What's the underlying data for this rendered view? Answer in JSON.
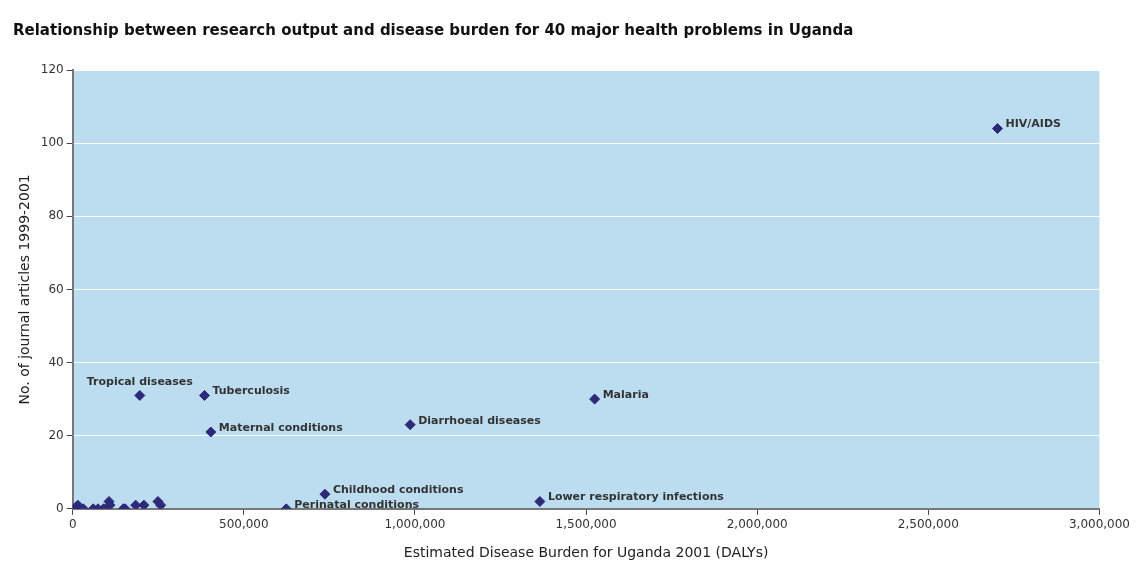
{
  "chart_data": {
    "type": "scatter",
    "title": "Relationship between research output and disease burden for 40 major health problems in Uganda",
    "xlabel": "Estimated Disease Burden for Uganda 2001 (DALYs)",
    "ylabel": "No. of journal articles 1999-2001",
    "xlim": [
      0,
      3000000
    ],
    "xticks": [
      {
        "value": 0,
        "label": "0"
      },
      {
        "value": 500000,
        "label": "500,000"
      },
      {
        "value": 1000000,
        "label": "1,000,000"
      },
      {
        "value": 1500000,
        "label": "1,500,000"
      },
      {
        "value": 2000000,
        "label": "2,000,000"
      },
      {
        "value": 2500000,
        "label": "2,500,000"
      },
      {
        "value": 3000000,
        "label": "3,000,000"
      }
    ],
    "ylim": [
      0,
      120
    ],
    "yticks": [
      0,
      20,
      40,
      60,
      80,
      100,
      120
    ],
    "grid": "y",
    "marker": "diamond",
    "legend": false,
    "series": [
      {
        "color": "#2e2a7a",
        "x": [
          4000,
          8000,
          15000,
          31000,
          60000,
          74000,
          90000,
          106000,
          109000,
          148000,
          153000,
          184000,
          208000,
          249000,
          257000,
          196000,
          385000,
          403500,
          624000,
          737000,
          986000,
          1365000,
          1525000,
          2702000
        ],
        "values": [
          0,
          0,
          1,
          0,
          0,
          0,
          0,
          2,
          1,
          0,
          0,
          1,
          1,
          2,
          1,
          31,
          31,
          21,
          0,
          4,
          23,
          2,
          30,
          104
        ]
      }
    ],
    "annotations": [
      {
        "text": "HIV/AIDS",
        "x": 2702000,
        "y": 104
      },
      {
        "text": "Tuberculosis",
        "x": 385000,
        "y": 31
      },
      {
        "text": "Tropical diseases",
        "x": 196000,
        "y": 31
      },
      {
        "text": "Malaria",
        "x": 1525000,
        "y": 30
      },
      {
        "text": "Maternal conditions",
        "x": 403500,
        "y": 21
      },
      {
        "text": "Diarrhoeal diseases",
        "x": 986000,
        "y": 23
      },
      {
        "text": "Childhood conditions",
        "x": 737000,
        "y": 4
      },
      {
        "text": "Perinatal conditions",
        "x": 624000,
        "y": 0
      },
      {
        "text": "Lower respiratory infections",
        "x": 1365000,
        "y": 2
      }
    ]
  }
}
